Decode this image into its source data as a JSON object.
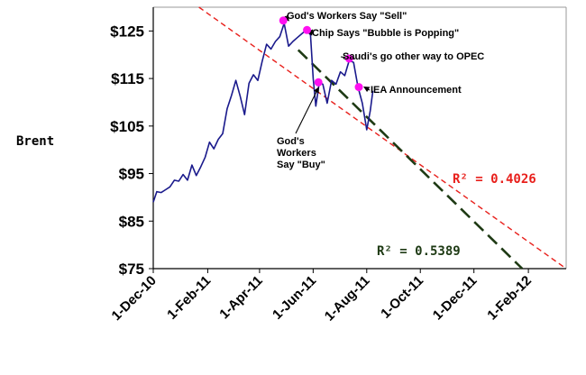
{
  "chart_data": {
    "type": "line",
    "title": "",
    "xlabel": "",
    "ylabel": "Brent",
    "ylim": [
      75,
      130
    ],
    "yticks": [
      75,
      85,
      95,
      105,
      115,
      125
    ],
    "ytick_labels": [
      "$75",
      "$85",
      "$95",
      "$105",
      "$115",
      "$125"
    ],
    "xlim": [
      "2010-12-01",
      "2012-03-15"
    ],
    "xticks": [
      "2010-12-01",
      "2011-02-01",
      "2011-04-01",
      "2011-06-01",
      "2011-08-01",
      "2011-10-01",
      "2011-12-01",
      "2012-02-01"
    ],
    "xtick_labels": [
      "1-Dec-10",
      "1-Feb-11",
      "1-Apr-11",
      "1-Jun-11",
      "1-Aug-11",
      "1-Oct-11",
      "1-Dec-11",
      "1-Feb-12"
    ],
    "grid": false,
    "series": [
      {
        "color": "#1a1a8c",
        "points": [
          [
            "2010-12-01",
            89.0
          ],
          [
            "2010-12-05",
            91.2
          ],
          [
            "2010-12-10",
            91.0
          ],
          [
            "2010-12-15",
            91.6
          ],
          [
            "2010-12-20",
            92.2
          ],
          [
            "2010-12-25",
            93.6
          ],
          [
            "2010-12-30",
            93.4
          ],
          [
            "2011-01-04",
            94.8
          ],
          [
            "2011-01-09",
            93.6
          ],
          [
            "2011-01-14",
            96.8
          ],
          [
            "2011-01-19",
            94.6
          ],
          [
            "2011-01-24",
            96.4
          ],
          [
            "2011-01-29",
            98.4
          ],
          [
            "2011-02-03",
            101.6
          ],
          [
            "2011-02-08",
            100.2
          ],
          [
            "2011-02-13",
            102.2
          ],
          [
            "2011-02-18",
            103.4
          ],
          [
            "2011-02-23",
            108.6
          ],
          [
            "2011-02-28",
            111.4
          ],
          [
            "2011-03-05",
            114.6
          ],
          [
            "2011-03-10",
            111.2
          ],
          [
            "2011-03-15",
            107.4
          ],
          [
            "2011-03-20",
            114.0
          ],
          [
            "2011-03-25",
            115.8
          ],
          [
            "2011-03-30",
            114.6
          ],
          [
            "2011-04-04",
            118.6
          ],
          [
            "2011-04-09",
            122.2
          ],
          [
            "2011-04-14",
            121.2
          ],
          [
            "2011-04-19",
            122.8
          ],
          [
            "2011-04-24",
            123.8
          ],
          [
            "2011-04-29",
            126.6
          ],
          [
            "2011-05-04",
            121.8
          ],
          [
            "2011-05-09",
            122.8
          ],
          [
            "2011-05-14",
            123.6
          ],
          [
            "2011-05-19",
            124.4
          ],
          [
            "2011-05-24",
            125.2
          ],
          [
            "2011-05-29",
            124.2
          ],
          [
            "2011-06-01",
            115.0
          ],
          [
            "2011-06-04",
            109.2
          ],
          [
            "2011-06-08",
            114.2
          ],
          [
            "2011-06-12",
            113.8
          ],
          [
            "2011-06-17",
            109.8
          ],
          [
            "2011-06-22",
            114.6
          ],
          [
            "2011-06-27",
            113.8
          ],
          [
            "2011-07-02",
            116.4
          ],
          [
            "2011-07-07",
            115.6
          ],
          [
            "2011-07-12",
            118.8
          ],
          [
            "2011-07-17",
            118.4
          ],
          [
            "2011-07-22",
            113.2
          ],
          [
            "2011-07-27",
            109.8
          ],
          [
            "2011-08-01",
            104.2
          ],
          [
            "2011-08-05",
            108.2
          ],
          [
            "2011-08-08",
            112.4
          ]
        ]
      }
    ],
    "trendlines": [
      {
        "label": "R² = 0.4026",
        "color": "#e8201c",
        "start": [
          "2011-01-22",
          130
        ],
        "end": [
          "2012-03-15",
          75
        ]
      },
      {
        "label": "R² = 0.5389",
        "color": "#1e3a14",
        "start": [
          "2011-05-15",
          121.0
        ],
        "end": [
          "2012-01-25",
          75
        ]
      }
    ],
    "annotations": [
      {
        "id": "gods-workers-sell",
        "text": "God's Workers Say \"Sell\"",
        "point": [
          "2011-04-28",
          127.2
        ]
      },
      {
        "id": "chip-bubble",
        "text": "Chip Says \"Bubble is Popping\"",
        "point": [
          "2011-05-25",
          125.2
        ]
      },
      {
        "id": "gods-workers-buy",
        "text_lines": [
          "God's",
          "Workers",
          "Say \"Buy\""
        ],
        "point": [
          "2011-06-07",
          114.2
        ]
      },
      {
        "id": "saudi-opec",
        "text": "Saudi's go other way to OPEC",
        "point": [
          "2011-07-12",
          119.2
        ]
      },
      {
        "id": "iea",
        "text": "IEA Announcement",
        "point": [
          "2011-07-23",
          113.2
        ]
      }
    ],
    "r2_labels": [
      {
        "text": "R² = 0.4026",
        "color": "#e8201c"
      },
      {
        "text": "R² = 0.5389",
        "color": "#1e3a14"
      }
    ]
  }
}
